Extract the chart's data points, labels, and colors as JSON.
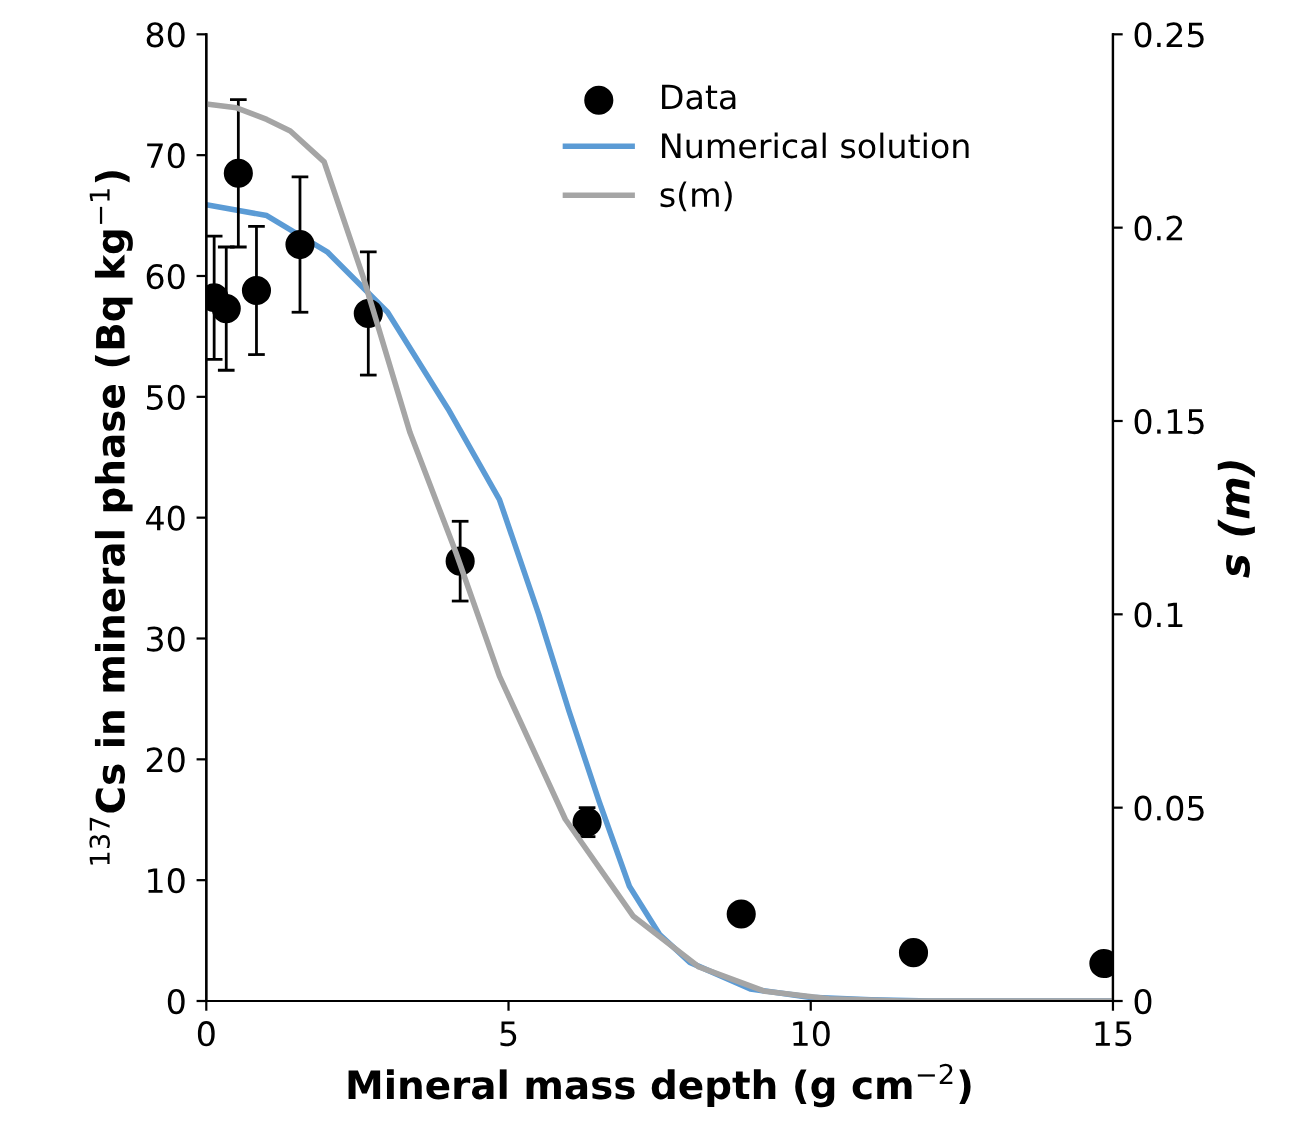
{
  "chart_data": {
    "type": "scatter",
    "xlabel": "Mineral mass depth (g cm$^{−2}$)",
    "ylabel": "$^{137}$Cs in mineral phase (Bq kg$^{−1}$)",
    "y2label": "s (m)",
    "xlim": [
      0,
      15
    ],
    "xticks": [
      0,
      5,
      10,
      15
    ],
    "ylim": [
      0,
      80
    ],
    "yticks": [
      0,
      10,
      20,
      30,
      40,
      50,
      60,
      70,
      80
    ],
    "y2lim": [
      0,
      0.25
    ],
    "y2ticks": [
      0,
      0.05,
      0.1,
      0.15,
      0.2,
      0.25
    ],
    "grid": false,
    "legend": "top",
    "series": [
      {
        "name": "Data",
        "marker": "circle",
        "color": "#000000",
        "x": [
          0.13,
          0.33,
          0.53,
          0.83,
          1.55,
          2.68,
          4.2,
          6.3,
          8.85,
          11.7,
          14.85
        ],
        "values": [
          58.2,
          57.3,
          68.5,
          58.8,
          62.6,
          56.9,
          36.4,
          14.8,
          7.2,
          4.0,
          3.1
        ],
        "errors": [
          5.1,
          5.1,
          6.1,
          5.3,
          5.6,
          5.1,
          3.3,
          1.2,
          null,
          null,
          null
        ]
      },
      {
        "name": "Numerical solution",
        "type": "line",
        "marker": "none",
        "color": "#5b9bd5",
        "x": [
          0,
          1,
          2,
          3,
          4,
          4.85,
          5.5,
          6,
          6.5,
          7,
          7.5,
          8,
          9,
          10,
          11,
          12,
          15
        ],
        "values": [
          65.9,
          65.0,
          62,
          57,
          49,
          41.5,
          32,
          24,
          16.5,
          9.5,
          5.5,
          3.2,
          1.0,
          0.3,
          0.1,
          0,
          0
        ]
      },
      {
        "name": "s(m)",
        "type": "line",
        "axis": "y2",
        "marker": "none",
        "color": "#a5a5a5",
        "x": [
          0,
          0.5,
          1,
          1.39,
          1.95,
          2.6,
          3.37,
          4.13,
          4.85,
          5.94,
          7.06,
          8.15,
          9.24,
          10.3,
          11.5,
          15
        ],
        "values": [
          0.232,
          0.231,
          0.228,
          0.225,
          0.217,
          0.187,
          0.147,
          0.116,
          0.084,
          0.047,
          0.022,
          0.0088,
          0.0025,
          0.0006,
          0,
          0
        ]
      }
    ]
  }
}
